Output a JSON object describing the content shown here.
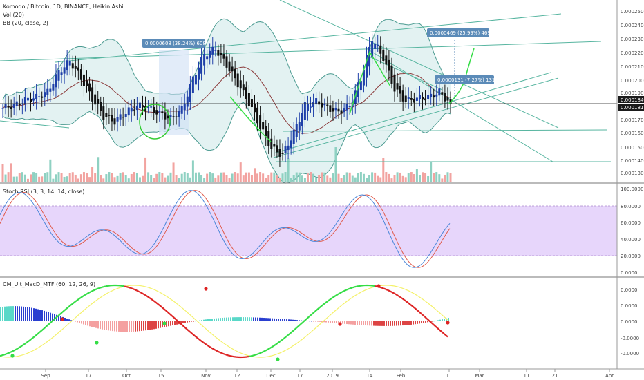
{
  "header": {
    "symbol_title": "Komodo / Bitcoin, 1D, BINANCE, Heikin Ashi",
    "vol_label": "Vol (20)",
    "bb_label": "BB (20, close, 2)"
  },
  "panes": {
    "stoch_label": "Stoch RSI (3, 3, 14, 14, close)",
    "macd_label": "CM_Ult_MacD_MTF (60, 12, 26, 9)"
  },
  "colors": {
    "up": "#1e3fa8",
    "down": "#111111",
    "bb": "#4a9a90",
    "bb_fill": "#e3f2f2",
    "basis": "#8b3a3a",
    "trend": "#57b5a0",
    "stoch_k": "#4a86d8",
    "stoch_d": "#e05a4a",
    "stoch_band": "#e7d6fb",
    "macd_green": "#33dd44",
    "macd_red": "#dd2222",
    "macd_yellow": "#f4f16a",
    "annotation": "#5b8bb8",
    "price_marker": "#1b1b1b"
  },
  "annotations": [
    {
      "text": "0.0000608 (38.24%) 608"
    },
    {
      "text": "0.0000469 (25.99%) 469"
    },
    {
      "text": "0.0000131 (7.27%) 131"
    }
  ],
  "price_markers": [
    {
      "text": "0.0001846"
    },
    {
      "text": "0.0001811"
    }
  ],
  "chart_data": [
    {
      "type": "candlestick",
      "title": "Komodo / Bitcoin, 1D, BINANCE, Heikin Ashi",
      "y_ticks": [
        "0.0002500",
        "0.0002400",
        "0.0002300",
        "0.0002200",
        "0.0002100",
        "0.0002000",
        "0.0001900",
        "0.0001700",
        "0.0001600",
        "0.0001500",
        "0.0001400",
        "0.0001300"
      ],
      "ylim": [
        0.000129,
        0.000256
      ],
      "x_ticks": [
        "Sep",
        "17",
        "Oct",
        "15",
        "Nov",
        "12",
        "Dec",
        "17",
        "2019",
        "14",
        "Feb",
        "11",
        "Mar",
        "11",
        "21",
        "Apr"
      ],
      "close_approx": [
        0.000178,
        0.00018,
        0.000184,
        0.000186,
        0.00019,
        0.000205,
        0.000213,
        0.0002,
        0.000185,
        0.000172,
        0.000168,
        0.000175,
        0.00018,
        0.000178,
        0.000174,
        0.00017,
        0.000177,
        0.0002,
        0.000218,
        0.000222,
        0.00021,
        0.000196,
        0.000182,
        0.000164,
        0.000148,
        0.000143,
        0.00016,
        0.00018,
        0.000183,
        0.000178,
        0.000175,
        0.00018,
        0.0002,
        0.00023,
        0.000215,
        0.000192,
        0.000183,
        0.000185,
        0.000186,
        0.00019,
        0.000181
      ]
    },
    {
      "type": "line",
      "title": "Stoch RSI (3, 3, 14, 14, close)",
      "y_ticks": [
        "100.0000",
        "80.0000",
        "60.0000",
        "40.0000",
        "20.0000",
        "0.0000"
      ],
      "ylim": [
        0,
        100
      ],
      "band": [
        20,
        80
      ]
    },
    {
      "type": "bar",
      "title": "CM_Ult_MacD_MTF (60, 12, 26, 9)",
      "y_ticks": [
        "0.0000",
        "0.0000",
        "0.0000",
        "-0.0000",
        "-0.0000"
      ]
    }
  ]
}
